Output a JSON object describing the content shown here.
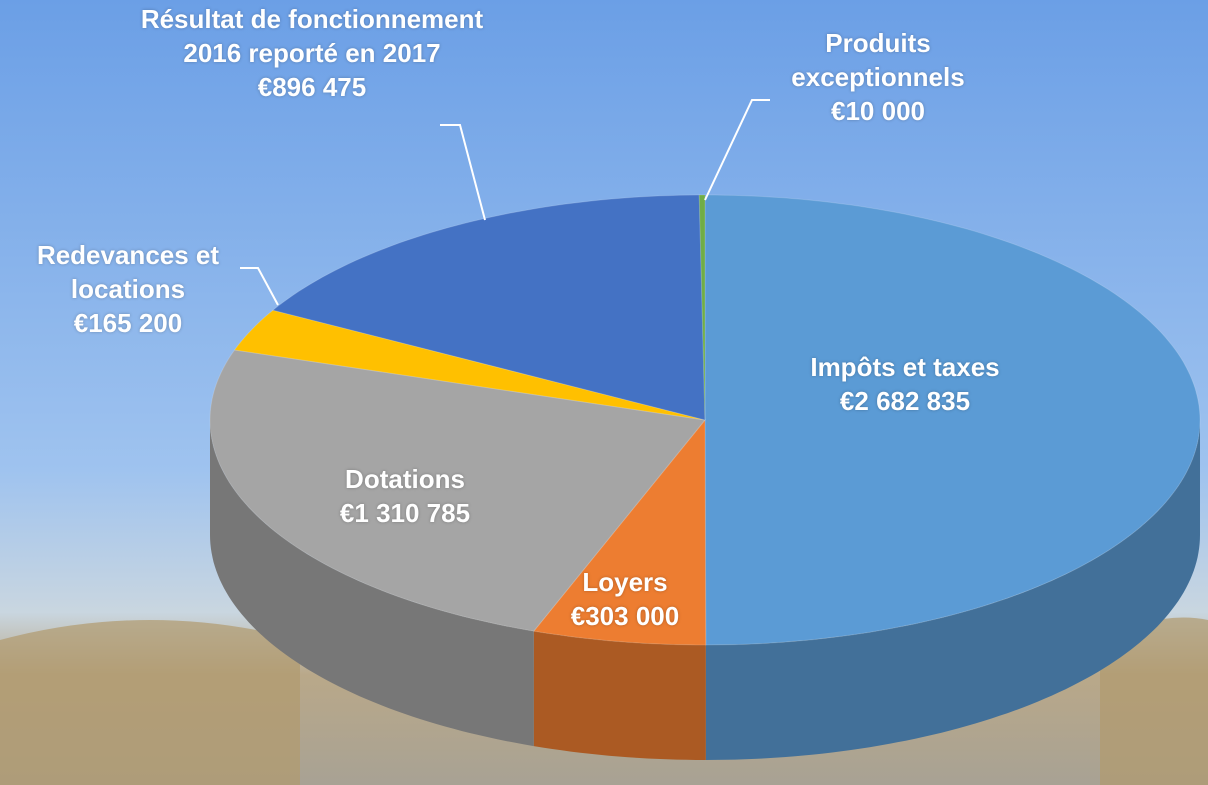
{
  "chart_data": {
    "type": "pie",
    "categories": [
      "Impôts et taxes",
      "Loyers",
      "Dotations",
      "Redevances et locations",
      "Résultat de fonctionnement 2016 reporté en 2017",
      "Produits exceptionnels"
    ],
    "values": [
      2682835,
      303000,
      1310785,
      165200,
      896475,
      10000
    ],
    "value_labels": [
      "€2 682 835",
      "€303 000",
      "€1 310 785",
      "€165 200",
      "€896 475",
      "€10 000"
    ],
    "colors": [
      "#5b9bd5",
      "#ed7d31",
      "#a5a5a5",
      "#ffc000",
      "#4472c4",
      "#70ad47"
    ]
  }
}
